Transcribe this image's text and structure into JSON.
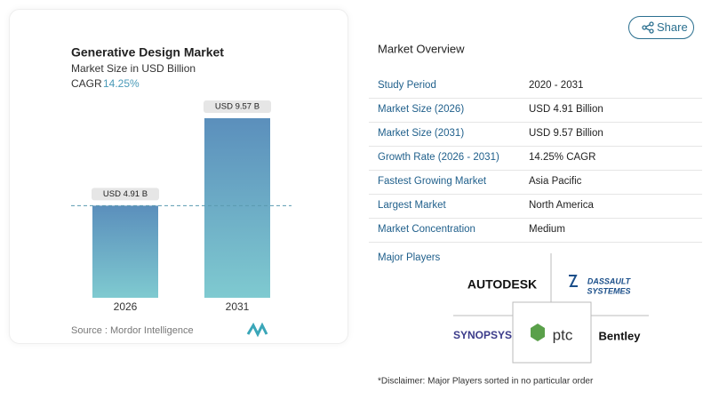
{
  "chart_data": {
    "type": "bar",
    "title": "Generative Design Market",
    "subtitle": "Market Size in USD Billion",
    "cagr_label": "CAGR",
    "cagr": "14.25%",
    "categories": [
      "2026",
      "2031"
    ],
    "values": [
      4.91,
      9.57
    ],
    "value_labels": [
      "USD 4.91 B",
      "USD 9.57 B"
    ],
    "source": "Source : Mordor Intelligence"
  },
  "share": "Share",
  "overview": {
    "title": "Market Overview",
    "rows": [
      [
        "Study Period",
        "2020 - 2031"
      ],
      [
        "Market Size (2026)",
        "USD 4.91 Billion"
      ],
      [
        "Market Size (2031)",
        "USD 9.57 Billion"
      ],
      [
        "Growth Rate (2026 - 2031)",
        "14.25% CAGR"
      ],
      [
        "Fastest Growing Market",
        "Asia Pacific"
      ],
      [
        "Largest Market",
        "North America"
      ],
      [
        "Market Concentration",
        "Medium"
      ]
    ],
    "players_title": "Major Players",
    "players": [
      "AUTODESK",
      "DASSAULT",
      "SYSTEMES",
      "SYNOPSYS",
      "ptc",
      "Bentley"
    ],
    "disclaimer": "*Disclaimer: Major Players sorted in no particular order"
  }
}
